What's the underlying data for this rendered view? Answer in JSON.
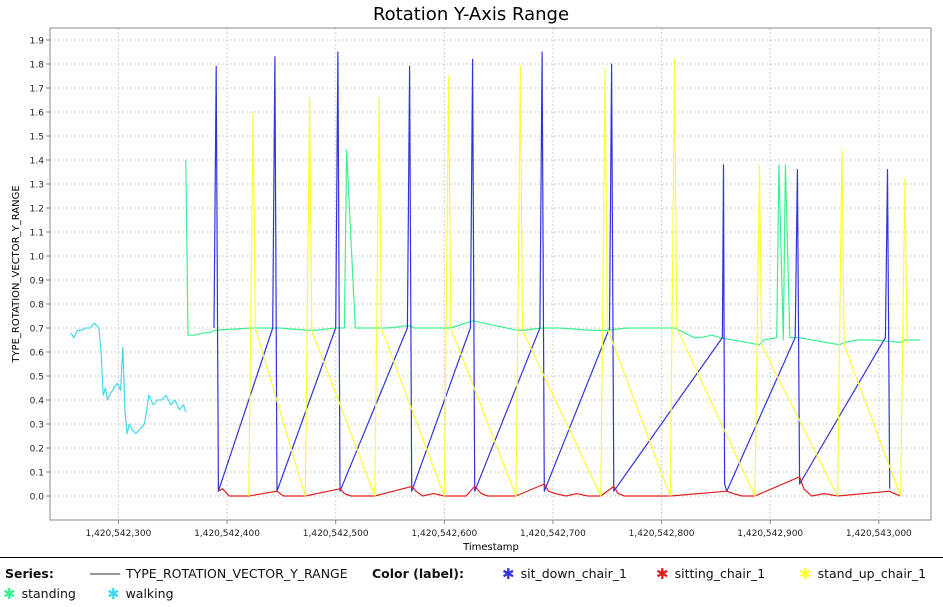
{
  "chart_data": {
    "type": "line",
    "title": "Rotation Y-Axis Range",
    "xlabel": "Timestamp",
    "ylabel": "TYPE_ROTATION_VECTOR_Y_RANGE",
    "xlim": [
      1420542237,
      1420543048
    ],
    "ylim": [
      -0.1,
      1.95
    ],
    "x_ticks": [
      1420542300,
      1420542400,
      1420542500,
      1420542600,
      1420542700,
      1420542800,
      1420542900,
      1420543000
    ],
    "x_tick_labels": [
      "1,420,542,300",
      "1,420,542,400",
      "1,420,542,500",
      "1,420,542,600",
      "1,420,542,700",
      "1,420,542,800",
      "1,420,542,900",
      "1,420,543,000"
    ],
    "y_ticks": [
      0.0,
      0.1,
      0.2,
      0.3,
      0.4,
      0.5,
      0.6,
      0.7,
      0.8,
      0.9,
      1.0,
      1.1,
      1.2,
      1.3,
      1.4,
      1.5,
      1.6,
      1.7,
      1.8,
      1.9
    ],
    "y_tick_labels": [
      "0.0",
      "0.1",
      "0.2",
      "0.3",
      "0.4",
      "0.5",
      "0.6",
      "0.7",
      "0.8",
      "0.9",
      "1.0",
      "1.1",
      "1.2",
      "1.3",
      "1.4",
      "1.5",
      "1.6",
      "1.7",
      "1.8",
      "1.9"
    ],
    "grid": true,
    "series_legend_title": "Series:",
    "color_legend_title": "Color (label):",
    "series": [
      {
        "name": "walking",
        "color": "#44d8ef",
        "x": [
          1420542256,
          1420542259,
          1420542262,
          1420542266,
          1420542270,
          1420542274,
          1420542278,
          1420542282,
          1420542284,
          1420542286,
          1420542288,
          1420542290,
          1420542293,
          1420542296,
          1420542299,
          1420542302,
          1420542304,
          1420542306,
          1420542308,
          1420542310,
          1420542312,
          1420542316,
          1420542320,
          1420542324,
          1420542328,
          1420542332,
          1420542336,
          1420542340,
          1420542344,
          1420542348,
          1420542352,
          1420542356,
          1420542360,
          1420542362
        ],
        "y": [
          0.68,
          0.66,
          0.69,
          0.69,
          0.7,
          0.7,
          0.72,
          0.7,
          0.6,
          0.42,
          0.45,
          0.4,
          0.43,
          0.45,
          0.47,
          0.44,
          0.62,
          0.35,
          0.26,
          0.3,
          0.28,
          0.26,
          0.28,
          0.3,
          0.42,
          0.38,
          0.4,
          0.4,
          0.42,
          0.38,
          0.4,
          0.36,
          0.38,
          0.35
        ]
      },
      {
        "name": "standing",
        "color": "#3df08f",
        "x": [
          1420542362,
          1420542364,
          1420542370,
          1420542378,
          1420542384,
          1420542388,
          1420542422,
          1420542426,
          1420542440,
          1420542448,
          1420542476,
          1420542480,
          1420542500,
          1420542508,
          1420542510,
          1420542518,
          1420542540,
          1420542548,
          1420542568,
          1420542572,
          1420542590,
          1420542606,
          1420542626,
          1420542668,
          1420542672,
          1420542690,
          1420542706,
          1420542736,
          1420542750,
          1420542768,
          1420542792,
          1420542812,
          1420542830,
          1420542836,
          1420542846,
          1420542854,
          1420542890,
          1420542894,
          1420542906,
          1420542908,
          1420542912,
          1420542914,
          1420542918,
          1420542926,
          1420542964,
          1420542968,
          1420542980,
          1420542996,
          1420543020,
          1420543024,
          1420543030,
          1420543038
        ],
        "y": [
          1.4,
          0.67,
          0.67,
          0.68,
          0.68,
          0.69,
          0.7,
          0.7,
          0.7,
          0.7,
          0.69,
          0.69,
          0.7,
          0.7,
          1.44,
          0.7,
          0.7,
          0.7,
          0.71,
          0.7,
          0.7,
          0.7,
          0.73,
          0.69,
          0.69,
          0.7,
          0.7,
          0.69,
          0.69,
          0.7,
          0.7,
          0.7,
          0.66,
          0.66,
          0.67,
          0.66,
          0.63,
          0.65,
          0.66,
          1.38,
          0.65,
          1.38,
          0.66,
          0.66,
          0.63,
          0.64,
          0.65,
          0.65,
          0.64,
          0.65,
          0.65,
          0.65
        ]
      },
      {
        "name": "sit_down_chair_1",
        "color": "#3333dd",
        "x": [
          1420542388,
          1420542390,
          1420542392,
          1420542442,
          1420542444,
          1420542446,
          1420542500,
          1420542502,
          1420542504,
          1420542566,
          1420542568,
          1420542570,
          1420542624,
          1420542626,
          1420542628,
          1420542688,
          1420542690,
          1420542692,
          1420542752,
          1420542754,
          1420542756,
          1420542856,
          1420542857,
          1420542858,
          1420542860,
          1420542923,
          1420542925,
          1420542927,
          1420543006,
          1420543008,
          1420543010
        ],
        "y": [
          0.7,
          1.79,
          0.02,
          0.7,
          1.83,
          0.02,
          0.7,
          1.85,
          0.02,
          0.7,
          1.79,
          0.02,
          0.7,
          1.82,
          0.02,
          0.7,
          1.85,
          0.02,
          0.7,
          1.8,
          0.02,
          0.66,
          1.38,
          0.05,
          0.02,
          0.66,
          1.36,
          0.05,
          0.66,
          1.36,
          0.03
        ]
      },
      {
        "name": "sitting_chair_1",
        "color": "#e02020",
        "x": [
          1420542392,
          1420542396,
          1420542402,
          1420542412,
          1420542420,
          1420542446,
          1420542452,
          1420542458,
          1420542468,
          1420542472,
          1420542504,
          1420542508,
          1420542514,
          1420542524,
          1420542536,
          1420542570,
          1420542574,
          1420542580,
          1420542590,
          1420542600,
          1420542610,
          1420542620,
          1420542628,
          1420542634,
          1420542640,
          1420542650,
          1420542660,
          1420542666,
          1420542692,
          1420542696,
          1420542702,
          1420542712,
          1420542722,
          1420542732,
          1420542744,
          1420542756,
          1420542760,
          1420542766,
          1420542776,
          1420542790,
          1420542808,
          1420542860,
          1420542866,
          1420542874,
          1420542886,
          1420542927,
          1420542931,
          1420542938,
          1420542950,
          1420542962,
          1420543010,
          1420543014,
          1420543020
        ],
        "y": [
          0.02,
          0.03,
          0.0,
          0.0,
          0.0,
          0.02,
          0.0,
          0.0,
          0.0,
          0.0,
          0.03,
          0.01,
          0.0,
          0.0,
          0.0,
          0.04,
          0.02,
          0.0,
          0.01,
          0.0,
          0.0,
          0.0,
          0.04,
          0.01,
          0.0,
          0.0,
          0.0,
          0.0,
          0.05,
          0.02,
          0.01,
          0.0,
          0.01,
          0.0,
          0.0,
          0.04,
          0.01,
          0.0,
          0.0,
          0.0,
          0.0,
          0.02,
          0.01,
          0.0,
          0.0,
          0.08,
          0.03,
          0.0,
          0.01,
          0.0,
          0.02,
          0.01,
          0.0
        ]
      },
      {
        "name": "stand_up_chair_1",
        "color": "#ffff33",
        "x": [
          1420542420,
          1420542424,
          1420542426,
          1420542472,
          1420542476,
          1420542478,
          1420542536,
          1420542540,
          1420542542,
          1420542600,
          1420542604,
          1420542606,
          1420542666,
          1420542670,
          1420542672,
          1420542744,
          1420542748,
          1420542750,
          1420542808,
          1420542812,
          1420542814,
          1420542886,
          1420542890,
          1420542892,
          1420542962,
          1420542966,
          1420542968,
          1420543020,
          1420543024,
          1420543026
        ],
        "y": [
          0.0,
          1.6,
          0.7,
          0.0,
          1.66,
          0.69,
          0.0,
          1.66,
          0.7,
          0.0,
          1.75,
          0.7,
          0.0,
          1.79,
          0.69,
          0.0,
          1.78,
          0.7,
          0.0,
          1.82,
          0.7,
          0.0,
          1.38,
          0.63,
          0.0,
          1.44,
          0.63,
          0.0,
          1.32,
          0.63
        ]
      }
    ],
    "legend": {
      "series": [
        {
          "label": "TYPE_ROTATION_VECTOR_Y_RANGE",
          "color": "#999999"
        }
      ],
      "colors": [
        {
          "label": "sit_down_chair_1",
          "color": "#3333dd"
        },
        {
          "label": "sitting_chair_1",
          "color": "#e02020"
        },
        {
          "label": "stand_up_chair_1",
          "color": "#ffff33"
        },
        {
          "label": "standing",
          "color": "#3df08f"
        },
        {
          "label": "walking",
          "color": "#44d8ef"
        }
      ],
      "glyph": "✱"
    }
  }
}
